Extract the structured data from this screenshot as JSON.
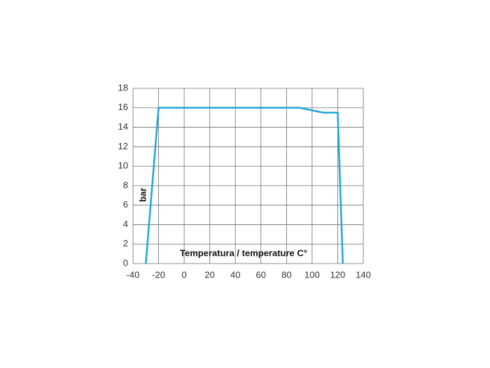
{
  "chart_data": {
    "type": "line",
    "x_label": "Temperatura / temperature C°",
    "y_label": "bar",
    "x": [
      -30,
      -20,
      90,
      109,
      120,
      124
    ],
    "series": [
      {
        "color": "#1fa6d9",
        "values": [
          0,
          16,
          16,
          15.5,
          15.5,
          0
        ]
      }
    ],
    "xlim": [
      -40,
      140
    ],
    "xticks": [
      -40,
      -20,
      0,
      20,
      40,
      60,
      80,
      100,
      120,
      140
    ],
    "ylim": [
      0,
      18
    ],
    "yticks": [
      0,
      2,
      4,
      6,
      8,
      10,
      12,
      14,
      16,
      18
    ],
    "grid": true
  }
}
